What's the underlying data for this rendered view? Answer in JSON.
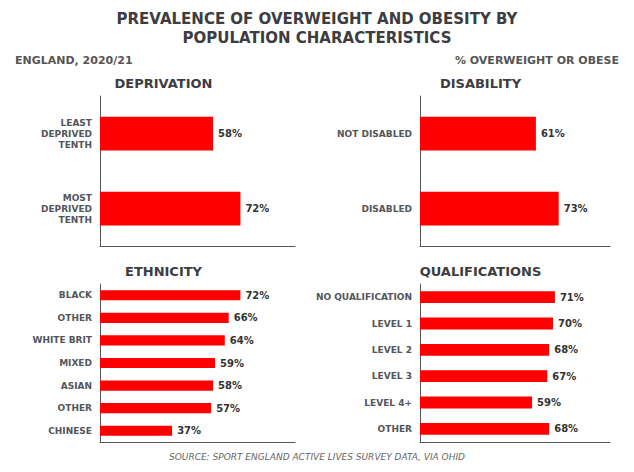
{
  "title": "PREVALENCE OF OVERWEIGHT AND OBESITY BY\nPOPULATION CHARACTERISTICS",
  "subtitle": "ENGLAND, 2020/21",
  "annotations": [
    "% OVERWEIGHT OR OBESE",
    "SOURCE: SPORT ENGLAND ACTIVE LIVES SURVEY DATA, VIA OHID"
  ],
  "chart_data": [
    {
      "type": "bar",
      "orientation": "horizontal",
      "title": "DEPRIVATION",
      "categories": [
        "LEAST\nDEPRIVED\nTENTH",
        "MOST\nDEPRIVED\nTENTH"
      ],
      "values": [
        58,
        72
      ],
      "value_labels": [
        "58%",
        "72%"
      ],
      "data_labels": true,
      "color": "#FF0000",
      "xlim": [
        0,
        100
      ],
      "grid": false,
      "tick_labels": "y"
    },
    {
      "type": "bar",
      "orientation": "horizontal",
      "title": "DISABILITY",
      "categories": [
        "NOT DISABLED",
        "DISABLED"
      ],
      "values": [
        61,
        73
      ],
      "value_labels": [
        "61%",
        "73%"
      ],
      "data_labels": true,
      "color": "#FF0000",
      "xlim": [
        0,
        100
      ],
      "grid": false,
      "tick_labels": "y"
    },
    {
      "type": "bar",
      "orientation": "horizontal",
      "title": "ETHNICITY",
      "categories": [
        "BLACK",
        "OTHER",
        "WHITE BRIT",
        "MIXED",
        "ASIAN",
        "OTHER",
        "CHINESE"
      ],
      "values": [
        72,
        66,
        64,
        59,
        58,
        57,
        37
      ],
      "value_labels": [
        "72%",
        "66%",
        "64%",
        "59%",
        "58%",
        "57%",
        "37%"
      ],
      "data_labels": true,
      "color": "#FF0000",
      "xlim": [
        0,
        100
      ],
      "grid": false,
      "tick_labels": "y"
    },
    {
      "type": "bar",
      "orientation": "horizontal",
      "title": "QUALIFICATIONS",
      "categories": [
        "NO QUALIFICATION",
        "LEVEL 1",
        "LEVEL 2",
        "LEVEL 3",
        "LEVEL 4+",
        "OTHER"
      ],
      "values": [
        71,
        70,
        68,
        67,
        59,
        68
      ],
      "value_labels": [
        "71%",
        "70%",
        "68%",
        "67%",
        "59%",
        "68%"
      ],
      "data_labels": true,
      "color": "#FF0000",
      "xlim": [
        0,
        100
      ],
      "grid": false,
      "tick_labels": "y"
    }
  ]
}
